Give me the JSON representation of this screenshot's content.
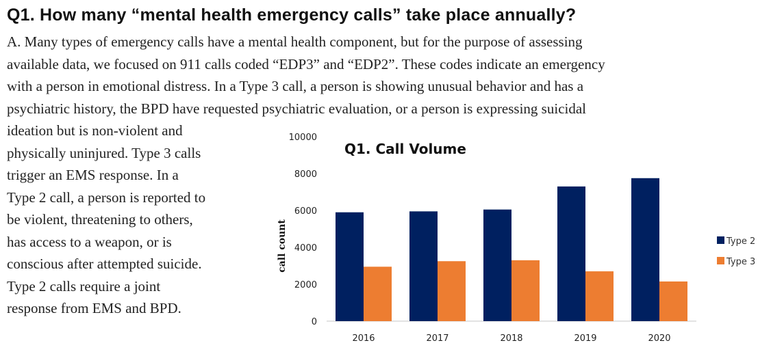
{
  "heading": "Q1. How many “mental health emergency calls” take place annually?",
  "intro_lines": [
    "A. Many types of emergency calls have a mental health component, but for the purpose of assessing",
    "available data, we focused on 911 calls coded “EDP3” and “EDP2”. These codes indicate an emergency",
    "with a person in emotional distress. In a Type 3 call, a person is showing unusual behavior and has a",
    "psychiatric history, the BPD have requested psychiatric evaluation, or a person is expressing suicidal"
  ],
  "side_lines": [
    "ideation but is non-violent and",
    "physically uninjured. Type 3 calls",
    "trigger an EMS response. In a",
    "Type 2 call, a person is reported to",
    "be violent, threatening to others,",
    "has access to a weapon, or is",
    "conscious after attempted suicide.",
    "Type 2 calls require a joint",
    "response from EMS and BPD."
  ],
  "chart_data": {
    "type": "bar",
    "title": "Q1. Call Volume",
    "xlabel": "",
    "ylabel": "call count",
    "categories": [
      "2016",
      "2017",
      "2018",
      "2019",
      "2020"
    ],
    "series": [
      {
        "name": "Type 2",
        "color": "#002060",
        "values": [
          5900,
          5950,
          6050,
          7300,
          7750
        ]
      },
      {
        "name": "Type 3",
        "color": "#ED7D31",
        "values": [
          2950,
          3250,
          3300,
          2700,
          2150
        ]
      }
    ],
    "ylim": [
      0,
      10000
    ],
    "yticks": [
      0,
      2000,
      4000,
      6000,
      8000,
      10000
    ],
    "grid": false,
    "legend": "right"
  }
}
